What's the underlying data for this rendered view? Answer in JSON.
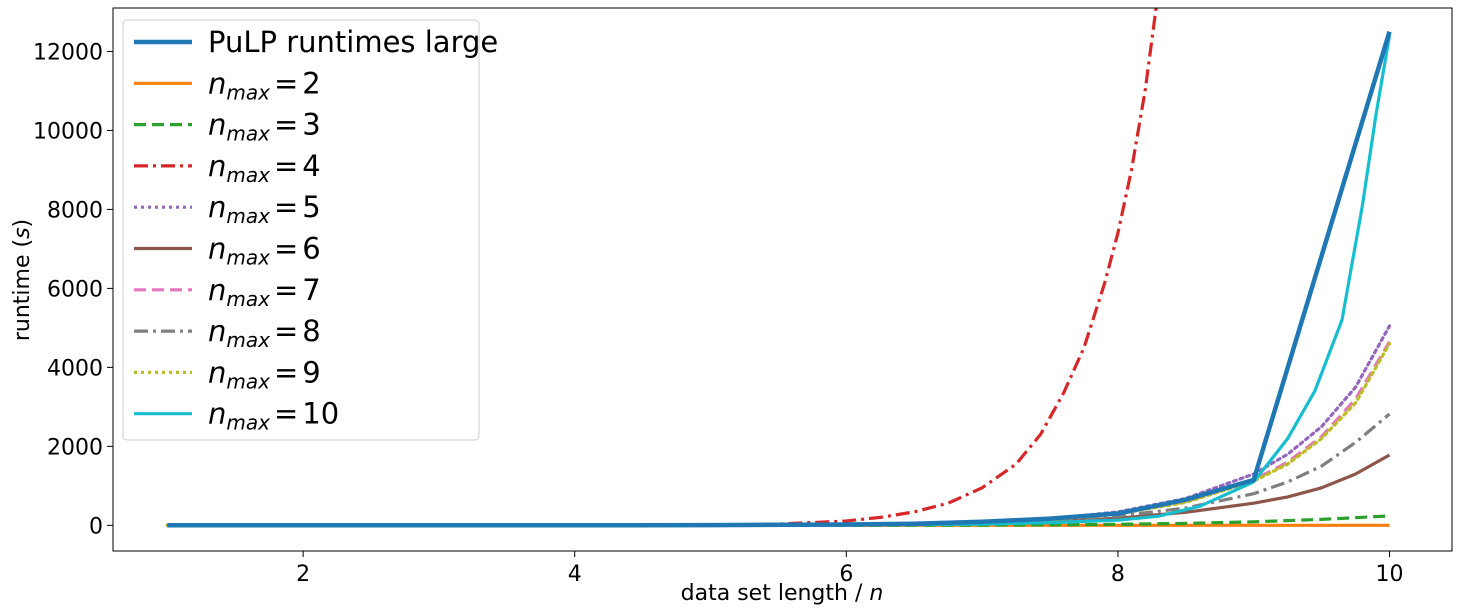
{
  "chart_data": {
    "type": "line",
    "xlabel_prefix": "data set length / ",
    "xlabel_var": "n",
    "ylabel_prefix": "runtime (",
    "ylabel_var": "s",
    "ylabel_suffix": ")",
    "xlim": [
      0.6,
      10.46
    ],
    "ylim": [
      -650,
      13100
    ],
    "xticks": [
      2,
      4,
      6,
      8,
      10
    ],
    "yticks": [
      0,
      2000,
      4000,
      6000,
      8000,
      10000,
      12000
    ],
    "legend_position": "upper-left",
    "series": [
      {
        "name": "PuLP runtimes large",
        "color": "#1f77b4",
        "style": "solid",
        "width": 4.5,
        "x": [
          1,
          2,
          3,
          4,
          5,
          6,
          6.5,
          7,
          7.5,
          8,
          8.5,
          9,
          10
        ],
        "y": [
          0,
          0,
          0,
          0,
          5,
          20,
          40,
          90,
          170,
          300,
          650,
          1150,
          12500
        ]
      },
      {
        "name_var": "n",
        "name_sub": "max",
        "name_val": "2",
        "color": "#ff7f0e",
        "style": "solid",
        "width": 3.2,
        "x": [
          1,
          4,
          6,
          8,
          9,
          10
        ],
        "y": [
          0,
          0,
          0,
          0,
          0,
          0
        ]
      },
      {
        "name_var": "n",
        "name_sub": "max",
        "name_val": "3",
        "color": "#2ca02c",
        "style": "dashed",
        "width": 3.2,
        "x": [
          1,
          5,
          6,
          7,
          7.5,
          8,
          8.5,
          9,
          9.5,
          10
        ],
        "y": [
          0,
          0,
          2,
          6,
          12,
          25,
          50,
          90,
          150,
          240
        ]
      },
      {
        "name_var": "n",
        "name_sub": "max",
        "name_val": "4",
        "color": "#d62728",
        "style": "dashdot",
        "width": 3.2,
        "x": [
          1,
          4,
          5,
          5.5,
          6,
          6.25,
          6.5,
          6.75,
          7,
          7.25,
          7.43,
          7.6,
          7.75,
          7.9,
          8.0,
          8.1,
          8.2,
          8.3
        ],
        "y": [
          0,
          0,
          5,
          30,
          110,
          200,
          340,
          560,
          950,
          1550,
          2300,
          3350,
          4500,
          6100,
          7400,
          9000,
          11000,
          13600
        ]
      },
      {
        "name_var": "n",
        "name_sub": "max",
        "name_val": "5",
        "color": "#9467bd",
        "style": "dotted",
        "width": 3.2,
        "x": [
          1,
          5,
          6,
          7,
          7.5,
          8,
          8.5,
          9,
          9.25,
          9.5,
          9.75,
          10
        ],
        "y": [
          0,
          2,
          15,
          70,
          160,
          340,
          680,
          1300,
          1800,
          2500,
          3500,
          5050
        ]
      },
      {
        "name_var": "n",
        "name_sub": "max",
        "name_val": "6",
        "color": "#8c564b",
        "style": "solid",
        "width": 3.2,
        "x": [
          1,
          5,
          6,
          7,
          7.5,
          8,
          8.5,
          9,
          9.25,
          9.5,
          9.75,
          10
        ],
        "y": [
          0,
          1,
          10,
          40,
          90,
          180,
          330,
          560,
          720,
          950,
          1300,
          1780
        ]
      },
      {
        "name_var": "n",
        "name_sub": "max",
        "name_val": "7",
        "color": "#e377c2",
        "style": "dashed",
        "width": 3.2,
        "x": [
          1,
          5,
          6,
          7,
          7.5,
          8,
          8.5,
          9,
          9.25,
          9.5,
          9.75,
          10
        ],
        "y": [
          0,
          2,
          14,
          65,
          145,
          300,
          600,
          1150,
          1600,
          2250,
          3200,
          4650
        ]
      },
      {
        "name_var": "n",
        "name_sub": "max",
        "name_val": "8",
        "color": "#7f7f7f",
        "style": "dashdot",
        "width": 3.2,
        "x": [
          1,
          5,
          6,
          7,
          7.5,
          8,
          8.5,
          9,
          9.25,
          9.5,
          9.75,
          10
        ],
        "y": [
          0,
          1,
          12,
          50,
          110,
          230,
          440,
          800,
          1100,
          1500,
          2100,
          2820
        ]
      },
      {
        "name_var": "n",
        "name_sub": "max",
        "name_val": "9",
        "color": "#bcbd22",
        "style": "dotted",
        "width": 3.2,
        "x": [
          1,
          5,
          6,
          7,
          7.5,
          8,
          8.5,
          9,
          9.25,
          9.5,
          9.75,
          10
        ],
        "y": [
          0,
          2,
          14,
          60,
          140,
          290,
          580,
          1120,
          1550,
          2200,
          3100,
          4600
        ]
      },
      {
        "name_var": "n",
        "name_sub": "max",
        "name_val": "10",
        "color": "#17becf",
        "style": "solid",
        "width": 3.2,
        "x": [
          1,
          5,
          6,
          7,
          7.5,
          8,
          8.3,
          8.6,
          9.0,
          9.25,
          9.45,
          9.65,
          9.8,
          9.9,
          10
        ],
        "y": [
          0,
          0,
          5,
          30,
          70,
          130,
          230,
          480,
          1100,
          2200,
          3400,
          5200,
          8100,
          10400,
          12400
        ]
      }
    ]
  }
}
